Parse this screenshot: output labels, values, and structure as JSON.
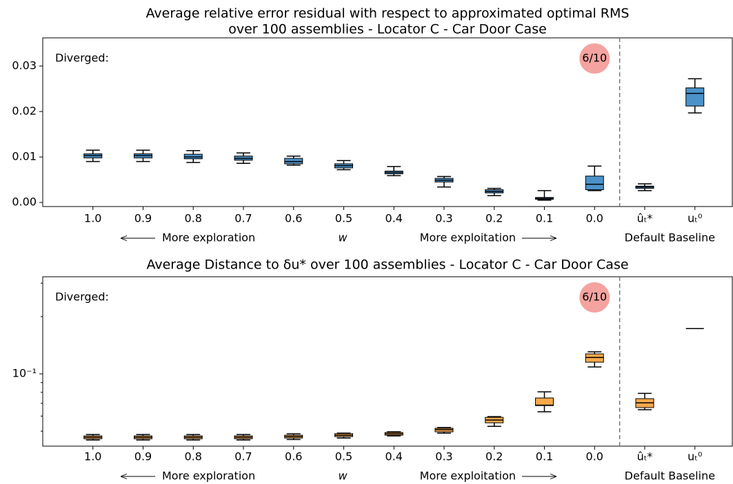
{
  "chart_data": [
    {
      "type": "box",
      "title": [
        "Average relative error residual with respect to approximated optimal RMS",
        "over 100 assemblies - Locator C - Car Door Case"
      ],
      "categories": [
        "1.0",
        "0.9",
        "0.8",
        "0.7",
        "0.6",
        "0.5",
        "0.4",
        "0.3",
        "0.2",
        "0.1",
        "0.0",
        "ûₜ*",
        "uₜ⁰"
      ],
      "x_notes": [
        "More exploration",
        "w",
        "More exploitation",
        "Default Baseline"
      ],
      "annotations": [
        "Diverged:",
        "6/10"
      ],
      "color": "#4c92c9",
      "log": false,
      "ylim": [
        -0.0009,
        0.0362
      ],
      "yticks": [
        {
          "value": 0,
          "label": "0.00"
        },
        0.01,
        0.02,
        0.03
      ],
      "boxes": [
        {
          "whislo": 0.009,
          "q1": 0.0098,
          "med": 0.0103,
          "q3": 0.0107,
          "whishi": 0.0115
        },
        {
          "whislo": 0.009,
          "q1": 0.0098,
          "med": 0.0103,
          "q3": 0.0107,
          "whishi": 0.0115
        },
        {
          "whislo": 0.0088,
          "q1": 0.0096,
          "med": 0.01,
          "q3": 0.0106,
          "whishi": 0.0114
        },
        {
          "whislo": 0.0086,
          "q1": 0.0093,
          "med": 0.0097,
          "q3": 0.0102,
          "whishi": 0.0109
        },
        {
          "whislo": 0.0082,
          "q1": 0.0085,
          "med": 0.009,
          "q3": 0.0097,
          "whishi": 0.0102
        },
        {
          "whislo": 0.0072,
          "q1": 0.0076,
          "med": 0.0081,
          "q3": 0.0085,
          "whishi": 0.0092
        },
        {
          "whislo": 0.0059,
          "q1": 0.0063,
          "med": 0.0066,
          "q3": 0.0069,
          "whishi": 0.0079
        },
        {
          "whislo": 0.0034,
          "q1": 0.0045,
          "med": 0.0049,
          "q3": 0.0053,
          "whishi": 0.0057
        },
        {
          "whislo": 0.0015,
          "q1": 0.0021,
          "med": 0.0024,
          "q3": 0.0028,
          "whishi": 0.0031
        },
        {
          "whislo": 0.0005,
          "q1": 0.0007,
          "med": 0.0009,
          "q3": 0.0011,
          "whishi": 0.0026
        },
        {
          "whislo": 0.0026,
          "q1": 0.0028,
          "med": 0.004,
          "q3": 0.0058,
          "whishi": 0.008
        },
        {
          "whislo": 0.0026,
          "q1": 0.0031,
          "med": 0.0034,
          "q3": 0.0036,
          "whishi": 0.0041
        },
        {
          "whislo": 0.0197,
          "q1": 0.0212,
          "med": 0.024,
          "q3": 0.0252,
          "whishi": 0.0272
        }
      ]
    },
    {
      "type": "box",
      "title": [
        "Average Distance to δu* over 100 assemblies - Locator C - Car Door Case"
      ],
      "categories": [
        "1.0",
        "0.9",
        "0.8",
        "0.7",
        "0.6",
        "0.5",
        "0.4",
        "0.3",
        "0.2",
        "0.1",
        "0.0",
        "ûₜ*",
        "uₜ⁰"
      ],
      "x_notes": [
        "More exploration",
        "w",
        "More exploitation",
        "Default Baseline"
      ],
      "annotations": [
        "Diverged:",
        "6/10"
      ],
      "color": "#f9a94c",
      "log": true,
      "ylim": [
        0.0417,
        0.324
      ],
      "yticks": [
        {
          "value": 0.1,
          "label": "10⁻¹"
        }
      ],
      "minor_yticks": [
        0.05,
        0.06,
        0.07,
        0.08,
        0.09,
        0.2,
        0.3
      ],
      "boxes": [
        {
          "whislo": 0.0449,
          "q1": 0.0456,
          "med": 0.0464,
          "q3": 0.0472,
          "whishi": 0.048
        },
        {
          "whislo": 0.0449,
          "q1": 0.0456,
          "med": 0.0464,
          "q3": 0.0472,
          "whishi": 0.048
        },
        {
          "whislo": 0.0449,
          "q1": 0.0456,
          "med": 0.0464,
          "q3": 0.0472,
          "whishi": 0.048
        },
        {
          "whislo": 0.0449,
          "q1": 0.0456,
          "med": 0.0464,
          "q3": 0.0472,
          "whishi": 0.048
        },
        {
          "whislo": 0.0452,
          "q1": 0.046,
          "med": 0.0468,
          "q3": 0.0476,
          "whishi": 0.0484
        },
        {
          "whislo": 0.046,
          "q1": 0.0468,
          "med": 0.0476,
          "q3": 0.0485,
          "whishi": 0.0488
        },
        {
          "whislo": 0.0472,
          "q1": 0.0476,
          "med": 0.0484,
          "q3": 0.0492,
          "whishi": 0.0496
        },
        {
          "whislo": 0.0488,
          "q1": 0.0496,
          "med": 0.0509,
          "q3": 0.0518,
          "whishi": 0.0522
        },
        {
          "whislo": 0.053,
          "q1": 0.0553,
          "med": 0.0572,
          "q3": 0.0591,
          "whishi": 0.0596
        },
        {
          "whislo": 0.0632,
          "q1": 0.0681,
          "med": 0.0685,
          "q3": 0.0747,
          "whishi": 0.0805
        },
        {
          "whislo": 0.1087,
          "q1": 0.1152,
          "med": 0.122,
          "q3": 0.1274,
          "whishi": 0.1306
        },
        {
          "whislo": 0.0648,
          "q1": 0.0665,
          "med": 0.0704,
          "q3": 0.0741,
          "whishi": 0.079
        },
        {
          "whislo": 0.173,
          "q1": 0.173,
          "med": 0.173,
          "q3": 0.173,
          "whishi": 0.173
        }
      ]
    }
  ]
}
